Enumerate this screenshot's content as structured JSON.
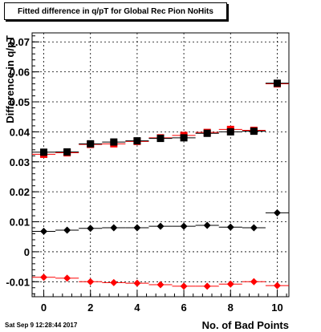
{
  "chart_data": {
    "type": "scatter",
    "title": "Fitted difference in q/pT for Global Rec Pion NoHits",
    "xlabel": "No. of Bad Points",
    "ylabel": "Difference in q/pT",
    "xlim": [
      -0.5,
      10.5
    ],
    "ylim": [
      -0.015,
      0.073
    ],
    "x_ticks": [
      "0",
      "2",
      "4",
      "6",
      "8",
      "10"
    ],
    "y_ticks": [
      "-0.01",
      "0",
      "0.01",
      "0.02",
      "0.03",
      "0.04",
      "0.05",
      "0.06",
      "0.07"
    ],
    "grid": true,
    "legend": false,
    "series": [
      {
        "marker": "square",
        "color": "#ff0000",
        "x": [
          0,
          1,
          2,
          3,
          4,
          5,
          6,
          7,
          8,
          9,
          10
        ],
        "y": [
          0.0325,
          0.033,
          0.0358,
          0.036,
          0.0368,
          0.038,
          0.0388,
          0.0398,
          0.0408,
          0.0405,
          0.056
        ]
      },
      {
        "marker": "square",
        "color": "#000000",
        "x": [
          0,
          1,
          2,
          3,
          4,
          5,
          6,
          7,
          8,
          9,
          10
        ],
        "y": [
          0.0332,
          0.0333,
          0.036,
          0.0366,
          0.037,
          0.0378,
          0.038,
          0.0395,
          0.04,
          0.0402,
          0.0562
        ]
      },
      {
        "marker": "diamond",
        "color": "#000000",
        "x": [
          0,
          1,
          2,
          3,
          4,
          5,
          6,
          7,
          8,
          9,
          10
        ],
        "y": [
          0.0068,
          0.0072,
          0.0078,
          0.008,
          0.008,
          0.0085,
          0.0085,
          0.0088,
          0.0082,
          0.008,
          0.013
        ]
      },
      {
        "marker": "diamond",
        "color": "#ff0000",
        "x": [
          0,
          1,
          2,
          3,
          4,
          5,
          6,
          7,
          8,
          9,
          10
        ],
        "y": [
          -0.0085,
          -0.0088,
          -0.01,
          -0.0103,
          -0.0105,
          -0.011,
          -0.0115,
          -0.0115,
          -0.0108,
          -0.01,
          -0.0113
        ]
      }
    ]
  },
  "timestamp": "Sat Sep  9 12:28:44 2017"
}
